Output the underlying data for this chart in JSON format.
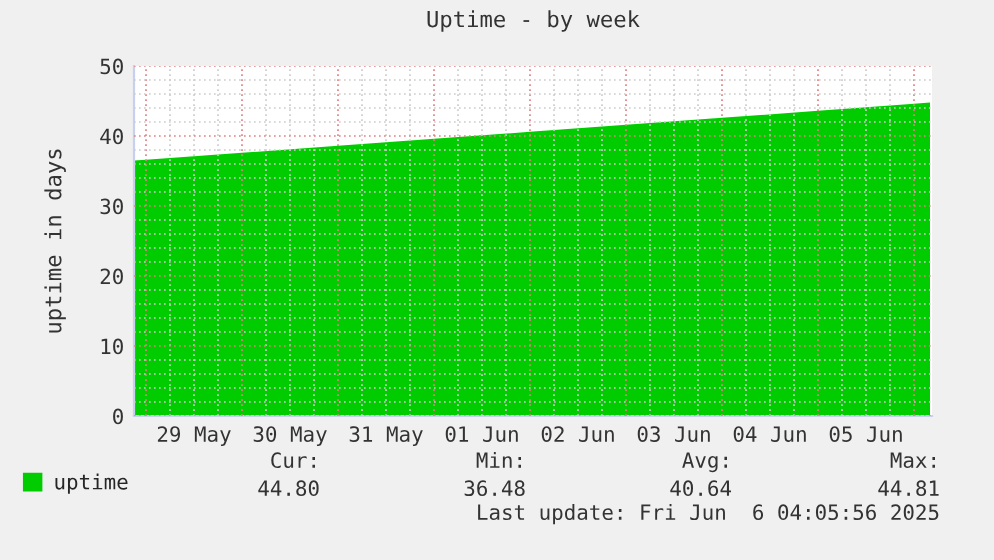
{
  "chart_data": {
    "type": "area",
    "title": "Uptime - by week",
    "ylabel": "uptime in days",
    "x": [
      "2025-05-28T21:00",
      "2025-05-29T00:00",
      "2025-05-30T00:00",
      "2025-05-31T00:00",
      "2025-06-01T00:00",
      "2025-06-02T00:00",
      "2025-06-03T00:00",
      "2025-06-04T00:00",
      "2025-06-05T00:00",
      "2025-06-06T00:00",
      "2025-06-06T04:00"
    ],
    "series": [
      {
        "name": "uptime",
        "color": "#00cc00",
        "values": [
          36.5,
          36.6,
          37.6,
          38.6,
          39.6,
          40.6,
          41.6,
          42.6,
          43.6,
          44.6,
          44.8
        ]
      }
    ],
    "xlim": [
      "2025-05-28T21:00",
      "2025-06-06T04:30"
    ],
    "xticks": [
      {
        "value": "2025-05-29T12:00",
        "label": "29 May"
      },
      {
        "value": "2025-05-30T12:00",
        "label": "30 May"
      },
      {
        "value": "2025-05-31T12:00",
        "label": "31 May"
      },
      {
        "value": "2025-06-01T12:00",
        "label": "01 Jun"
      },
      {
        "value": "2025-06-02T12:00",
        "label": "02 Jun"
      },
      {
        "value": "2025-06-03T12:00",
        "label": "03 Jun"
      },
      {
        "value": "2025-06-04T12:00",
        "label": "04 Jun"
      },
      {
        "value": "2025-06-05T12:00",
        "label": "05 Jun"
      }
    ],
    "ylim": [
      0,
      50
    ],
    "yticks": [
      0,
      10,
      20,
      30,
      40,
      50
    ],
    "grid": true,
    "legend": "bottom left",
    "annotations": [
      "Cur:",
      "Min:",
      "Avg:",
      "Max:",
      "44.80",
      "36.48",
      "40.64",
      "44.81",
      "Last update: Fri Jun  6 04:05:56 2025"
    ]
  }
}
